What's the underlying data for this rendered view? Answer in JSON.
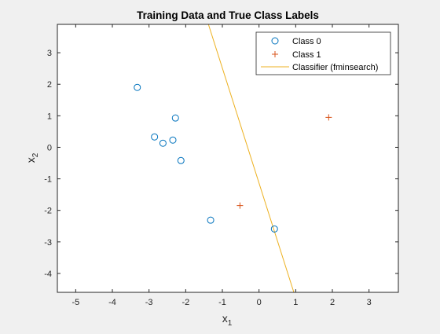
{
  "chart_data": {
    "type": "scatter",
    "title": "Training Data and True Class Labels",
    "xlabel": {
      "base": "x",
      "sub": "1"
    },
    "ylabel": {
      "base": "x",
      "sub": "2"
    },
    "xlim": [
      -5.5,
      3.8
    ],
    "ylim": [
      -4.6,
      3.9
    ],
    "xticks": [
      -5,
      -4,
      -3,
      -2,
      -1,
      0,
      1,
      2,
      3
    ],
    "yticks": [
      -4,
      -3,
      -2,
      -1,
      0,
      1,
      2,
      3
    ],
    "series": [
      {
        "name": "Class 0",
        "marker": "circle",
        "color": "#0072BD",
        "points": [
          {
            "x": -3.32,
            "y": 1.9
          },
          {
            "x": -2.28,
            "y": 0.93
          },
          {
            "x": -2.85,
            "y": 0.33
          },
          {
            "x": -2.62,
            "y": 0.13
          },
          {
            "x": -2.35,
            "y": 0.23
          },
          {
            "x": -2.13,
            "y": -0.42
          },
          {
            "x": -1.32,
            "y": -2.31
          },
          {
            "x": 0.42,
            "y": -2.59
          }
        ]
      },
      {
        "name": "Class 1",
        "marker": "plus",
        "color": "#D95319",
        "points": [
          {
            "x": 1.9,
            "y": 0.95
          },
          {
            "x": -0.52,
            "y": -1.85
          }
        ]
      }
    ],
    "line": {
      "name": "Classifier (fminsearch)",
      "color": "#EDB120",
      "from": {
        "x": -1.38,
        "y": 3.9
      },
      "to": {
        "x": 0.95,
        "y": -4.6
      }
    },
    "legend_placement": "top-right",
    "grid": false
  }
}
